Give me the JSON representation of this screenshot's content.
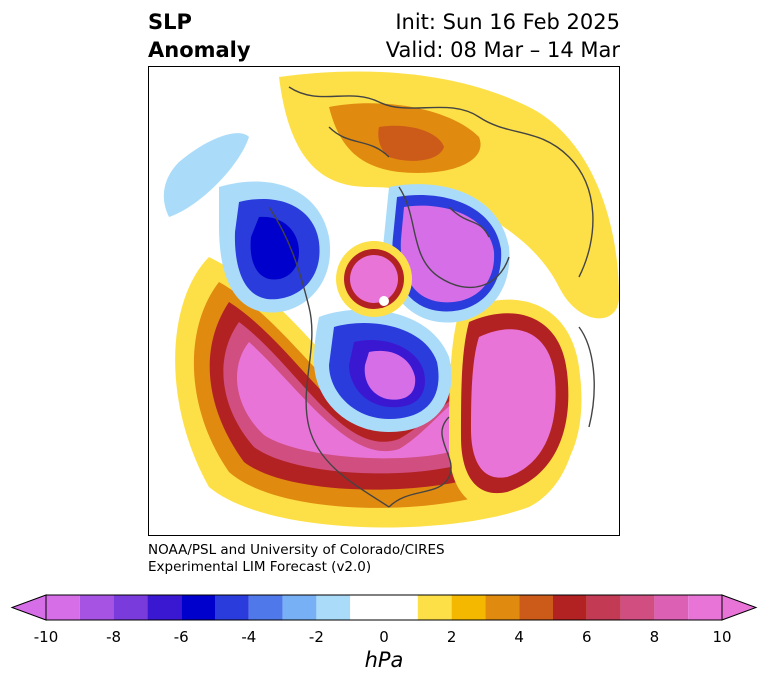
{
  "title": {
    "left_line1": "SLP",
    "left_line2": "Anomaly",
    "init": "Init: Sun 16 Feb 2025",
    "valid": "Valid: 08 Mar – 14 Mar"
  },
  "credit": {
    "line1": "NOAA/PSL and University of Colorado/CIRES",
    "line2": "Experimental LIM Forecast (v2.0)"
  },
  "colorbar": {
    "units": "hPa",
    "tick_labels": [
      "-10",
      "-8",
      "-6",
      "-4",
      "-2",
      "0",
      "2",
      "4",
      "6",
      "8",
      "10"
    ],
    "bins": [
      {
        "from": -10,
        "to": -9,
        "color": "#d66ee8"
      },
      {
        "from": -9,
        "to": -8,
        "color": "#a653e3"
      },
      {
        "from": -8,
        "to": -7,
        "color": "#7a3bdc"
      },
      {
        "from": -7,
        "to": -6,
        "color": "#3a18d2"
      },
      {
        "from": -6,
        "to": -5,
        "color": "#0000cc"
      },
      {
        "from": -5,
        "to": -4,
        "color": "#2a3cdc"
      },
      {
        "from": -4,
        "to": -3,
        "color": "#4f78ea"
      },
      {
        "from": -3,
        "to": -2,
        "color": "#78b0f5"
      },
      {
        "from": -2,
        "to": -1,
        "color": "#aadcfa"
      },
      {
        "from": -1,
        "to": 1,
        "color": "#ffffff"
      },
      {
        "from": 1,
        "to": 2,
        "color": "#fde047"
      },
      {
        "from": 2,
        "to": 3,
        "color": "#f5b800"
      },
      {
        "from": 3,
        "to": 4,
        "color": "#e08a10"
      },
      {
        "from": 4,
        "to": 5,
        "color": "#cc5a18"
      },
      {
        "from": 5,
        "to": 6,
        "color": "#b22222"
      },
      {
        "from": 6,
        "to": 7,
        "color": "#c23a54"
      },
      {
        "from": 7,
        "to": 8,
        "color": "#d04e80"
      },
      {
        "from": 8,
        "to": 9,
        "color": "#dc60b4"
      },
      {
        "from": 9,
        "to": 10,
        "color": "#e874d8"
      }
    ],
    "extend": "both",
    "under_color": "#d66ee8",
    "over_color": "#e874d8"
  },
  "map": {
    "projection": "north-polar stereographic",
    "variable": "sea level pressure anomaly"
  }
}
